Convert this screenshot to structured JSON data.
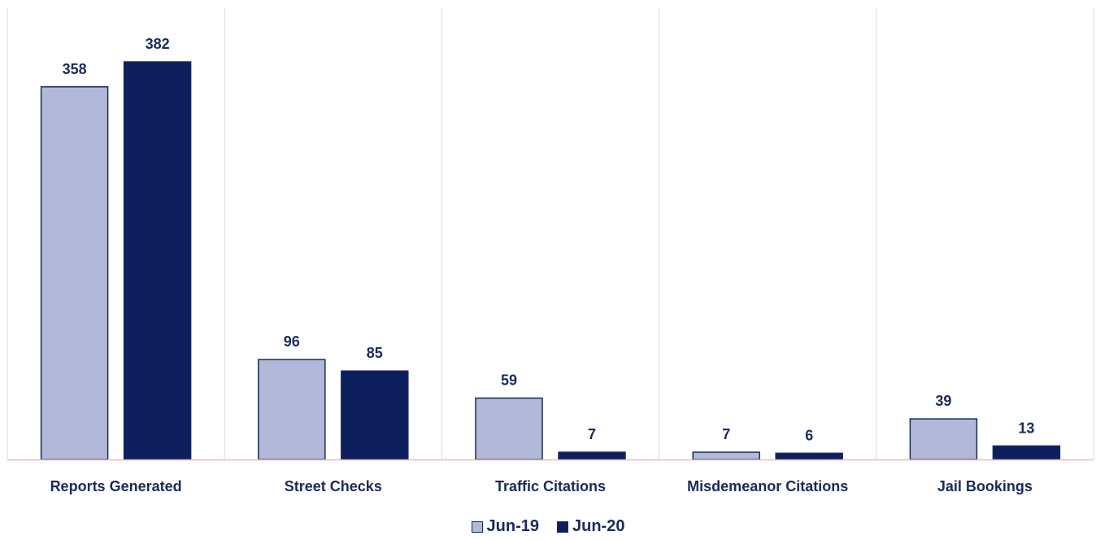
{
  "chart_data": {
    "type": "bar",
    "categories": [
      "Reports Generated",
      "Street Checks",
      "Traffic Citations",
      "Misdemeanor Citations",
      "Jail Bookings"
    ],
    "series": [
      {
        "name": "Jun-19",
        "values": [
          358,
          96,
          59,
          7,
          39
        ],
        "color": "#b2b9d8"
      },
      {
        "name": "Jun-20",
        "values": [
          382,
          85,
          7,
          6,
          13
        ],
        "color": "#0d1f5c"
      }
    ],
    "ylim": [
      0,
      420
    ],
    "grid": "vertical separators",
    "legend": "bottom-center",
    "label_color": "#1a2a5a",
    "border_color": "#1a2a5a",
    "baseline_color": "#f2b8b8"
  }
}
